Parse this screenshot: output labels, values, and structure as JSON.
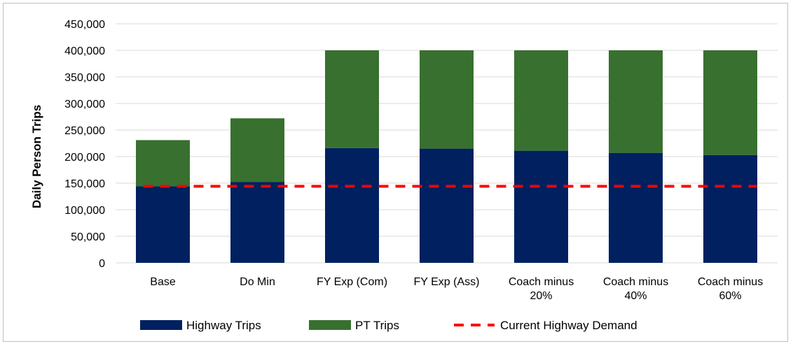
{
  "chart_data": {
    "type": "bar",
    "stacked": true,
    "categories": [
      [
        "Base"
      ],
      [
        "Do Min"
      ],
      [
        "FY Exp (Com)"
      ],
      [
        "FY Exp (Ass)"
      ],
      [
        "Coach minus",
        "20%"
      ],
      [
        "Coach minus",
        "40%"
      ],
      [
        "Coach minus",
        "60%"
      ]
    ],
    "series": [
      {
        "name": "Highway Trips",
        "color": "#002060",
        "values": [
          144000,
          152000,
          216000,
          215000,
          211000,
          207000,
          203000
        ]
      },
      {
        "name": "PT Trips",
        "color": "#38702f",
        "values": [
          87000,
          120000,
          184000,
          185000,
          189000,
          193000,
          197000
        ]
      }
    ],
    "reference_line": {
      "name": "Current Highway Demand",
      "color": "#ff0000",
      "style": "dashed",
      "value": 144000
    },
    "ylabel": "Daily Person Trips",
    "ylim": [
      0,
      450000
    ],
    "yticks": [
      "0",
      "50,000",
      "100,000",
      "150,000",
      "200,000",
      "250,000",
      "300,000",
      "350,000",
      "400,000",
      "450,000"
    ],
    "grid": true,
    "legend_position": "bottom"
  }
}
